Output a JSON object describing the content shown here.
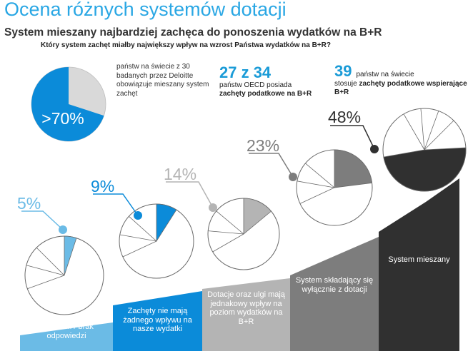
{
  "title": "Ocena różnych systemów dotacji",
  "subtitle": "System mieszany najbardziej zachęca do ponoszenia wydatków na B+R",
  "question": "Który system zachęt miałby największy wpływ na wzrost Państwa wydatków na B+R?",
  "big_pie": {
    "label": ">70%",
    "share": 70,
    "note": "państw na świecie z 30 badanych przez Deloitte obowiązuje mieszany system zachęt"
  },
  "stat1": {
    "number": "27 z 34",
    "text_pre": "państw OECD posiada",
    "text_bold": "zachęty podatkowe na B+R"
  },
  "stat2": {
    "number": "39",
    "text_after_number": "państw na świecie",
    "text_pre": "stosuje",
    "text_bold": "zachęty podatkowe wspierające B+R"
  },
  "colors": {
    "accent": "#2aa7e4",
    "accent_dark": "#0b8bd9",
    "light_blue": "#6bbbe6",
    "gray": "#b4b4b4",
    "dark_gray": "#7d7d7d",
    "black": "#303030",
    "pie_gray": "#d9d9d9"
  },
  "chart_data": {
    "type": "pie",
    "question": "Który system zachęt miałby największy wpływ na wzrost Państwa wydatków na B+R?",
    "categories": [
      "Nie wiem / brak odpowiedzi",
      "Zachęty nie mają żadnego wpływu na nasze wydatki",
      "Dotacje oraz ulgi mają jednakowy wpływ na poziom wydatków na B+R",
      "System składający się wyłącznie z dotacji",
      "System mieszany"
    ],
    "values": [
      5,
      9,
      14,
      23,
      48
    ],
    "labels": [
      "5%",
      "9%",
      "14%",
      "23%",
      "48%"
    ],
    "colors": [
      "#6bbbe6",
      "#0b8bd9",
      "#b4b4b4",
      "#7d7d7d",
      "#303030"
    ]
  }
}
